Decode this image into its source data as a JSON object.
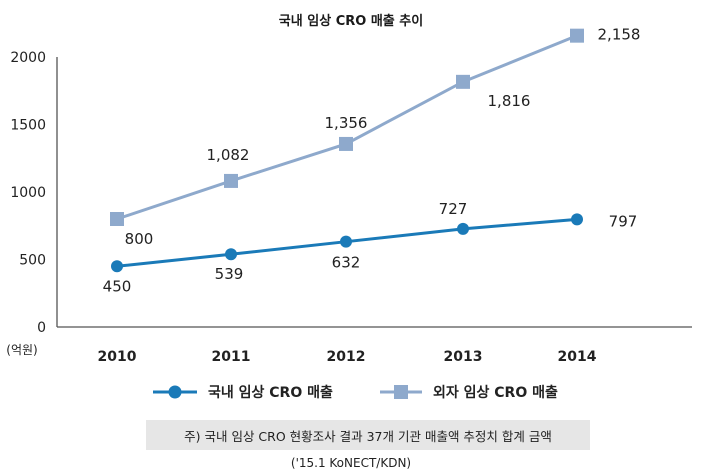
{
  "chart_data": {
    "type": "line",
    "title": "국내 임상 CRO 매출 추이",
    "unit_label": "(억원)",
    "categories": [
      "2010",
      "2011",
      "2012",
      "2013",
      "2014"
    ],
    "ylim": [
      0,
      2000
    ],
    "yticks": [
      "0",
      "500",
      "1000",
      "1500",
      "2000"
    ],
    "grid": false,
    "legend_position": "bottom",
    "series": [
      {
        "name": "국내 임상 CRO 매출",
        "values": [
          450,
          539,
          632,
          727,
          797
        ],
        "labels": [
          "450",
          "539",
          "632",
          "727",
          "797"
        ],
        "color": "#1a7ab8",
        "marker": "circle"
      },
      {
        "name": "외자 임상 CRO 매출",
        "values": [
          800,
          1082,
          1356,
          1816,
          2158
        ],
        "labels": [
          "800",
          "1,082",
          "1,356",
          "1,816",
          "2,158"
        ],
        "color": "#8ea9cc",
        "marker": "square"
      }
    ]
  },
  "note": "주) 국내 임상 CRO 현황조사 결과 37개 기관 매출액 추정치 합계 금액",
  "source": "('15.1 KoNECT/KDN)"
}
